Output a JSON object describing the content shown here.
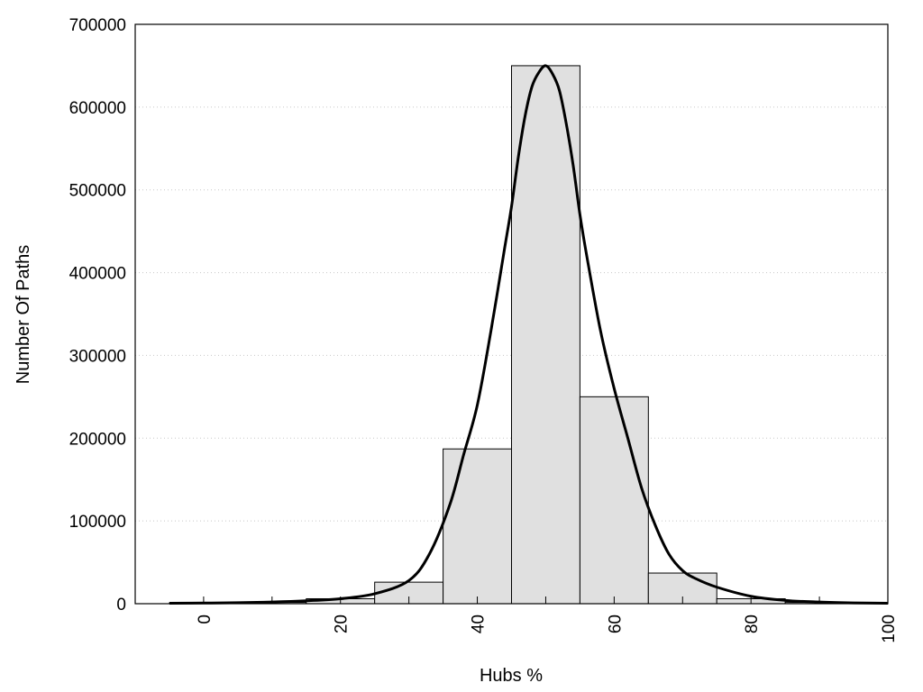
{
  "chart_data": {
    "type": "bar",
    "title": "",
    "xlabel": "Hubs %",
    "ylabel": "Number Of Paths",
    "xlim": [
      -10,
      100
    ],
    "ylim": [
      0,
      700000
    ],
    "grid": "horizontal dotted",
    "x_tick_labels": [
      "0",
      "20",
      "40",
      "60",
      "80",
      "100"
    ],
    "y_tick_labels": [
      "0",
      "100000",
      "200000",
      "300000",
      "400000",
      "500000",
      "600000",
      "700000"
    ],
    "bin_width": 10,
    "bar_color": "#e0e0e0",
    "line_color": "#000000",
    "bars": {
      "x": [
        0,
        10,
        20,
        30,
        40,
        50,
        60,
        70,
        80,
        90,
        100
      ],
      "values": [
        1000,
        1500,
        6000,
        26000,
        187000,
        650000,
        250000,
        37000,
        6000,
        1500,
        500
      ]
    },
    "curve": {
      "x": [
        -5,
        0,
        5,
        10,
        15,
        20,
        25,
        30,
        33,
        36,
        38,
        40,
        42,
        44,
        45,
        46,
        47,
        48,
        49,
        50,
        51,
        52,
        53,
        54,
        55,
        56,
        58,
        60,
        62,
        64,
        66,
        68,
        70,
        72,
        75,
        80,
        85,
        90,
        95,
        100
      ],
      "values": [
        500,
        800,
        1200,
        2000,
        3500,
        6000,
        12000,
        28000,
        60000,
        120000,
        180000,
        240000,
        330000,
        430000,
        480000,
        540000,
        590000,
        625000,
        642000,
        650000,
        640000,
        620000,
        580000,
        530000,
        470000,
        420000,
        330000,
        260000,
        200000,
        140000,
        95000,
        60000,
        40000,
        30000,
        20000,
        9000,
        4000,
        2000,
        1000,
        500
      ]
    }
  }
}
